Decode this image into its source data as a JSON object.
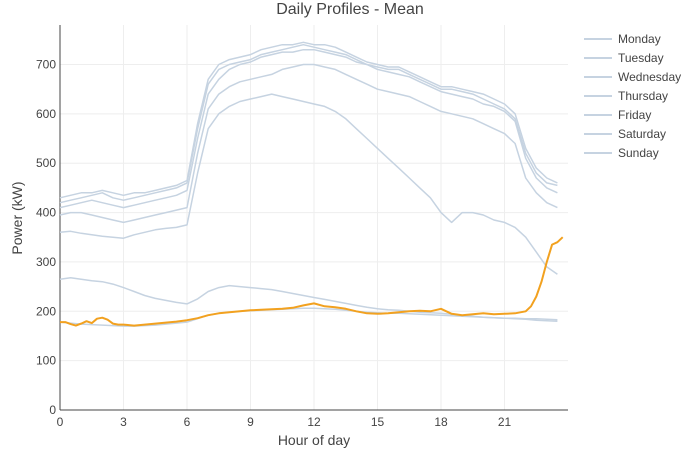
{
  "chart_data": {
    "type": "line",
    "title": "Daily Profiles - Mean",
    "xlabel": "Hour of day",
    "ylabel": "Power (kW)",
    "xlim": [
      0,
      24
    ],
    "ylim": [
      0,
      780
    ],
    "xticks": [
      0,
      3,
      6,
      9,
      12,
      15,
      18,
      21
    ],
    "yticks": [
      0,
      100,
      200,
      300,
      400,
      500,
      600,
      700
    ],
    "grid": true,
    "legend_position": "right",
    "series": [
      {
        "name": "Monday",
        "color": "#c6d3e1",
        "x": [
          0,
          0.5,
          1,
          1.5,
          2,
          2.5,
          3,
          3.5,
          4,
          4.5,
          5,
          5.5,
          6,
          6.5,
          7,
          7.5,
          8,
          8.5,
          9,
          9.5,
          10,
          10.5,
          11,
          11.5,
          12,
          12.5,
          13,
          13.5,
          14,
          14.5,
          15,
          15.5,
          16,
          16.5,
          17,
          17.5,
          18,
          18.5,
          19,
          19.5,
          20,
          20.5,
          21,
          21.5,
          22,
          22.5,
          23,
          23.5
        ],
        "values": [
          420,
          425,
          430,
          435,
          440,
          430,
          425,
          430,
          435,
          440,
          445,
          450,
          460,
          570,
          660,
          690,
          700,
          705,
          710,
          720,
          725,
          730,
          735,
          740,
          735,
          730,
          725,
          720,
          710,
          700,
          695,
          690,
          690,
          680,
          670,
          660,
          650,
          650,
          645,
          640,
          630,
          620,
          610,
          590,
          520,
          480,
          460,
          455
        ]
      },
      {
        "name": "Tuesday",
        "color": "#c6d3e1",
        "x": [
          0,
          0.5,
          1,
          1.5,
          2,
          2.5,
          3,
          3.5,
          4,
          4.5,
          5,
          5.5,
          6,
          6.5,
          7,
          7.5,
          8,
          8.5,
          9,
          9.5,
          10,
          10.5,
          11,
          11.5,
          12,
          12.5,
          13,
          13.5,
          14,
          14.5,
          15,
          15.5,
          16,
          16.5,
          17,
          17.5,
          18,
          18.5,
          19,
          19.5,
          20,
          20.5,
          21,
          21.5,
          22,
          22.5,
          23,
          23.5
        ],
        "values": [
          410,
          415,
          420,
          425,
          420,
          415,
          410,
          415,
          420,
          425,
          430,
          435,
          445,
          550,
          640,
          670,
          690,
          700,
          705,
          715,
          720,
          725,
          725,
          730,
          730,
          725,
          720,
          715,
          705,
          700,
          690,
          685,
          680,
          675,
          665,
          655,
          645,
          640,
          635,
          630,
          620,
          615,
          605,
          585,
          510,
          470,
          450,
          440
        ]
      },
      {
        "name": "Wednesday",
        "color": "#c6d3e1",
        "x": [
          0,
          0.5,
          1,
          1.5,
          2,
          2.5,
          3,
          3.5,
          4,
          4.5,
          5,
          5.5,
          6,
          6.5,
          7,
          7.5,
          8,
          8.5,
          9,
          9.5,
          10,
          10.5,
          11,
          11.5,
          12,
          12.5,
          13,
          13.5,
          14,
          14.5,
          15,
          15.5,
          16,
          16.5,
          17,
          17.5,
          18,
          18.5,
          19,
          19.5,
          20,
          20.5,
          21,
          21.5,
          22,
          22.5,
          23,
          23.5
        ],
        "values": [
          430,
          435,
          440,
          440,
          445,
          440,
          435,
          440,
          440,
          445,
          450,
          455,
          465,
          580,
          670,
          700,
          710,
          715,
          720,
          730,
          735,
          740,
          740,
          745,
          740,
          740,
          735,
          725,
          715,
          705,
          700,
          695,
          695,
          685,
          675,
          665,
          655,
          655,
          650,
          645,
          640,
          630,
          620,
          600,
          530,
          490,
          470,
          460
        ]
      },
      {
        "name": "Thursday",
        "color": "#c6d3e1",
        "x": [
          0,
          0.5,
          1,
          1.5,
          2,
          2.5,
          3,
          3.5,
          4,
          4.5,
          5,
          5.5,
          6,
          6.5,
          7,
          7.5,
          8,
          8.5,
          9,
          9.5,
          10,
          10.5,
          11,
          11.5,
          12,
          12.5,
          13,
          13.5,
          14,
          14.5,
          15,
          15.5,
          16,
          16.5,
          17,
          17.5,
          18,
          18.5,
          19,
          19.5,
          20,
          20.5,
          21,
          21.5,
          22,
          22.5,
          23,
          23.5
        ],
        "values": [
          395,
          400,
          400,
          395,
          390,
          385,
          380,
          385,
          390,
          395,
          400,
          405,
          410,
          520,
          610,
          640,
          655,
          665,
          670,
          675,
          680,
          690,
          695,
          700,
          700,
          695,
          690,
          680,
          670,
          660,
          650,
          645,
          640,
          635,
          625,
          615,
          605,
          600,
          595,
          590,
          580,
          570,
          560,
          540,
          470,
          440,
          420,
          410
        ]
      },
      {
        "name": "Friday",
        "color": "#c6d3e1",
        "x": [
          0,
          0.5,
          1,
          1.5,
          2,
          2.5,
          3,
          3.5,
          4,
          4.5,
          5,
          5.5,
          6,
          6.5,
          7,
          7.5,
          8,
          8.5,
          9,
          9.5,
          10,
          10.5,
          11,
          11.5,
          12,
          12.5,
          13,
          13.5,
          14,
          14.5,
          15,
          15.5,
          16,
          16.5,
          17,
          17.5,
          18,
          18.5,
          19,
          19.5,
          20,
          20.5,
          21,
          21.5,
          22,
          22.5,
          23,
          23.5
        ],
        "values": [
          360,
          362,
          358,
          355,
          352,
          350,
          348,
          355,
          360,
          365,
          368,
          370,
          375,
          480,
          570,
          600,
          615,
          625,
          630,
          635,
          640,
          635,
          630,
          625,
          620,
          615,
          605,
          590,
          570,
          550,
          530,
          510,
          490,
          470,
          450,
          430,
          400,
          380,
          400,
          400,
          395,
          385,
          380,
          370,
          350,
          320,
          290,
          275
        ]
      },
      {
        "name": "Saturday",
        "color": "#c6d3e1",
        "x": [
          0,
          0.5,
          1,
          1.5,
          2,
          2.5,
          3,
          3.5,
          4,
          4.5,
          5,
          5.5,
          6,
          6.5,
          7,
          7.5,
          8,
          8.5,
          9,
          9.5,
          10,
          10.5,
          11,
          11.5,
          12,
          12.5,
          13,
          13.5,
          14,
          14.5,
          15,
          15.5,
          16,
          16.5,
          17,
          17.5,
          18,
          18.5,
          19,
          19.5,
          20,
          20.5,
          21,
          21.5,
          22,
          22.5,
          23,
          23.5
        ],
        "values": [
          265,
          268,
          265,
          262,
          260,
          255,
          248,
          240,
          232,
          226,
          222,
          218,
          215,
          225,
          240,
          248,
          252,
          250,
          248,
          246,
          244,
          240,
          236,
          232,
          228,
          224,
          220,
          216,
          212,
          208,
          205,
          203,
          202,
          200,
          198,
          197,
          196,
          194,
          192,
          190,
          188,
          187,
          186,
          185,
          184,
          182,
          181,
          180
        ]
      },
      {
        "name": "Sunday",
        "color": "#c6d3e1",
        "x": [
          0,
          0.5,
          1,
          1.5,
          2,
          2.5,
          3,
          3.5,
          4,
          4.5,
          5,
          5.5,
          6,
          6.5,
          7,
          7.5,
          8,
          8.5,
          9,
          9.5,
          10,
          10.5,
          11,
          11.5,
          12,
          12.5,
          13,
          13.5,
          14,
          14.5,
          15,
          15.5,
          16,
          16.5,
          17,
          17.5,
          18,
          18.5,
          19,
          19.5,
          20,
          20.5,
          21,
          21.5,
          22,
          22.5,
          23,
          23.5
        ],
        "values": [
          178,
          176,
          174,
          173,
          172,
          171,
          170,
          170,
          171,
          172,
          174,
          176,
          178,
          185,
          192,
          196,
          198,
          200,
          201,
          202,
          203,
          204,
          205,
          206,
          206,
          205,
          204,
          202,
          200,
          198,
          197,
          196,
          196,
          195,
          194,
          193,
          192,
          191,
          190,
          189,
          188,
          187,
          186,
          186,
          185,
          185,
          184,
          183
        ]
      },
      {
        "name": "",
        "color": "#f2a11f",
        "x": [
          0,
          0.25,
          0.5,
          0.75,
          1,
          1.25,
          1.5,
          1.75,
          2,
          2.25,
          2.5,
          2.75,
          3,
          3.25,
          3.5,
          3.75,
          4,
          4.5,
          5,
          5.5,
          6,
          6.5,
          7,
          7.5,
          8,
          8.5,
          9,
          9.5,
          10,
          10.5,
          11,
          11.5,
          12,
          12.5,
          13,
          13.5,
          14,
          14.5,
          15,
          15.5,
          16,
          16.5,
          17,
          17.5,
          18,
          18.5,
          19,
          19.5,
          20,
          20.5,
          21,
          21.5,
          22,
          22.25,
          22.5,
          22.75,
          23,
          23.25,
          23.5,
          23.75
        ],
        "values": [
          178,
          178,
          174,
          171,
          175,
          180,
          176,
          185,
          187,
          183,
          175,
          173,
          173,
          172,
          171,
          172,
          173,
          175,
          177,
          179,
          182,
          186,
          192,
          196,
          198,
          200,
          202,
          203,
          204,
          205,
          207,
          212,
          216,
          210,
          208,
          205,
          200,
          196,
          195,
          196,
          198,
          200,
          201,
          200,
          205,
          195,
          192,
          194,
          196,
          194,
          195,
          196,
          200,
          210,
          230,
          260,
          300,
          335,
          340,
          350
        ]
      }
    ]
  }
}
